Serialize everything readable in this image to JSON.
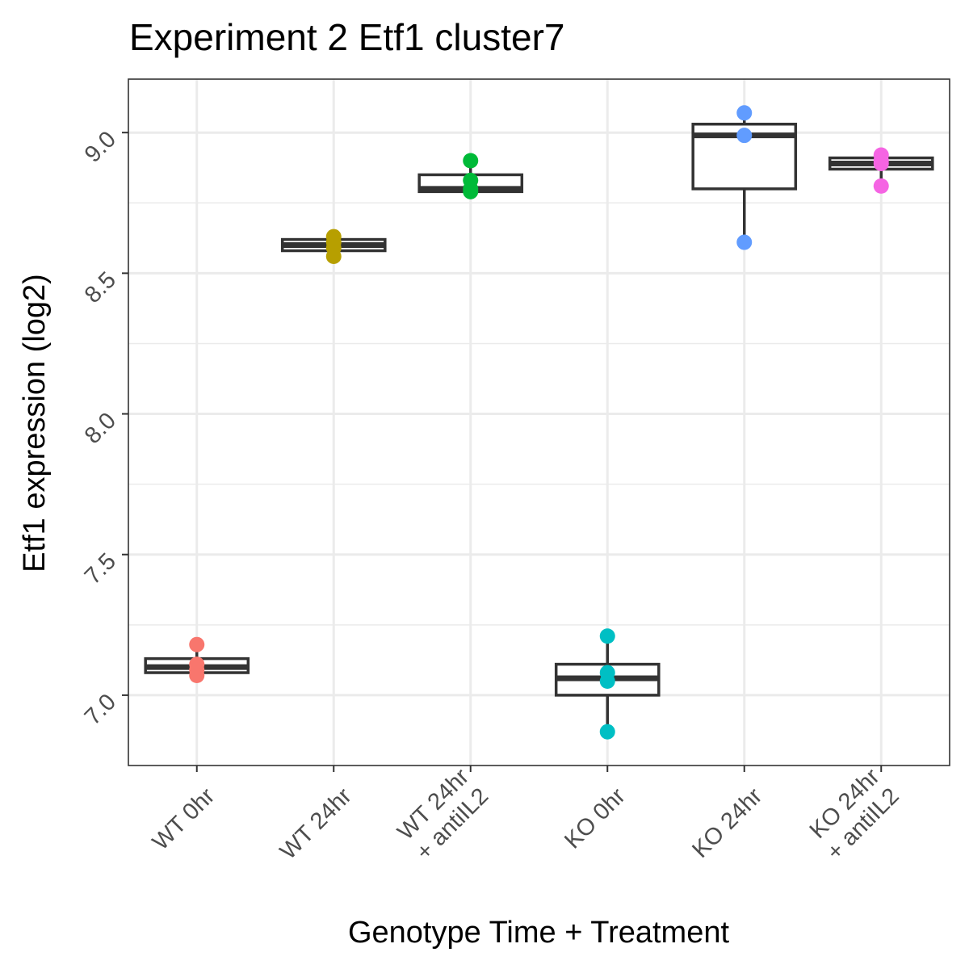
{
  "chart_data": {
    "type": "box",
    "title": "Experiment 2 Etf1 cluster7",
    "xlabel": "Genotype Time + Treatment",
    "ylabel": "Etf1 expression (log2)",
    "ylim": [
      6.75,
      9.19
    ],
    "y_ticks": [
      7.0,
      7.5,
      8.0,
      8.5,
      9.0
    ],
    "y_tick_labels": [
      "7.0",
      "7.5",
      "8.0",
      "8.5",
      "9.0"
    ],
    "grid": true,
    "legend": "none",
    "categories": [
      {
        "lines": [
          "WT 0hr"
        ]
      },
      {
        "lines": [
          "WT 24hr"
        ]
      },
      {
        "lines": [
          "WT 24hr",
          "+ antiIL2"
        ]
      },
      {
        "lines": [
          "KO 0hr"
        ]
      },
      {
        "lines": [
          "KO 24hr"
        ]
      },
      {
        "lines": [
          "KO 24hr",
          "+ antiIL2"
        ]
      }
    ],
    "boxes": [
      {
        "q1": 7.08,
        "median": 7.1,
        "q3": 7.13,
        "whisker_low": 7.07,
        "whisker_high": 7.18,
        "color": "#F8766D",
        "points": [
          7.18,
          7.11,
          7.09,
          7.07
        ]
      },
      {
        "q1": 8.58,
        "median": 8.6,
        "q3": 8.62,
        "whisker_low": 8.56,
        "whisker_high": 8.63,
        "color": "#B79F00",
        "points": [
          8.63,
          8.61,
          8.59,
          8.56
        ]
      },
      {
        "q1": 8.79,
        "median": 8.8,
        "q3": 8.85,
        "whisker_low": 8.79,
        "whisker_high": 8.9,
        "color": "#00BA38",
        "points": [
          8.9,
          8.83,
          8.8,
          8.79
        ]
      },
      {
        "q1": 7.0,
        "median": 7.06,
        "q3": 7.11,
        "whisker_low": 6.87,
        "whisker_high": 7.21,
        "color": "#00BFC4",
        "points": [
          7.21,
          7.08,
          7.05,
          6.87
        ]
      },
      {
        "q1": 8.8,
        "median": 8.99,
        "q3": 9.03,
        "whisker_low": 8.61,
        "whisker_high": 9.07,
        "color": "#619CFF",
        "points": [
          9.07,
          8.99,
          8.61
        ]
      },
      {
        "q1": 8.87,
        "median": 8.89,
        "q3": 8.91,
        "whisker_low": 8.81,
        "whisker_high": 8.92,
        "color": "#F564E3",
        "points": [
          8.92,
          8.9,
          8.89,
          8.81
        ]
      }
    ]
  }
}
